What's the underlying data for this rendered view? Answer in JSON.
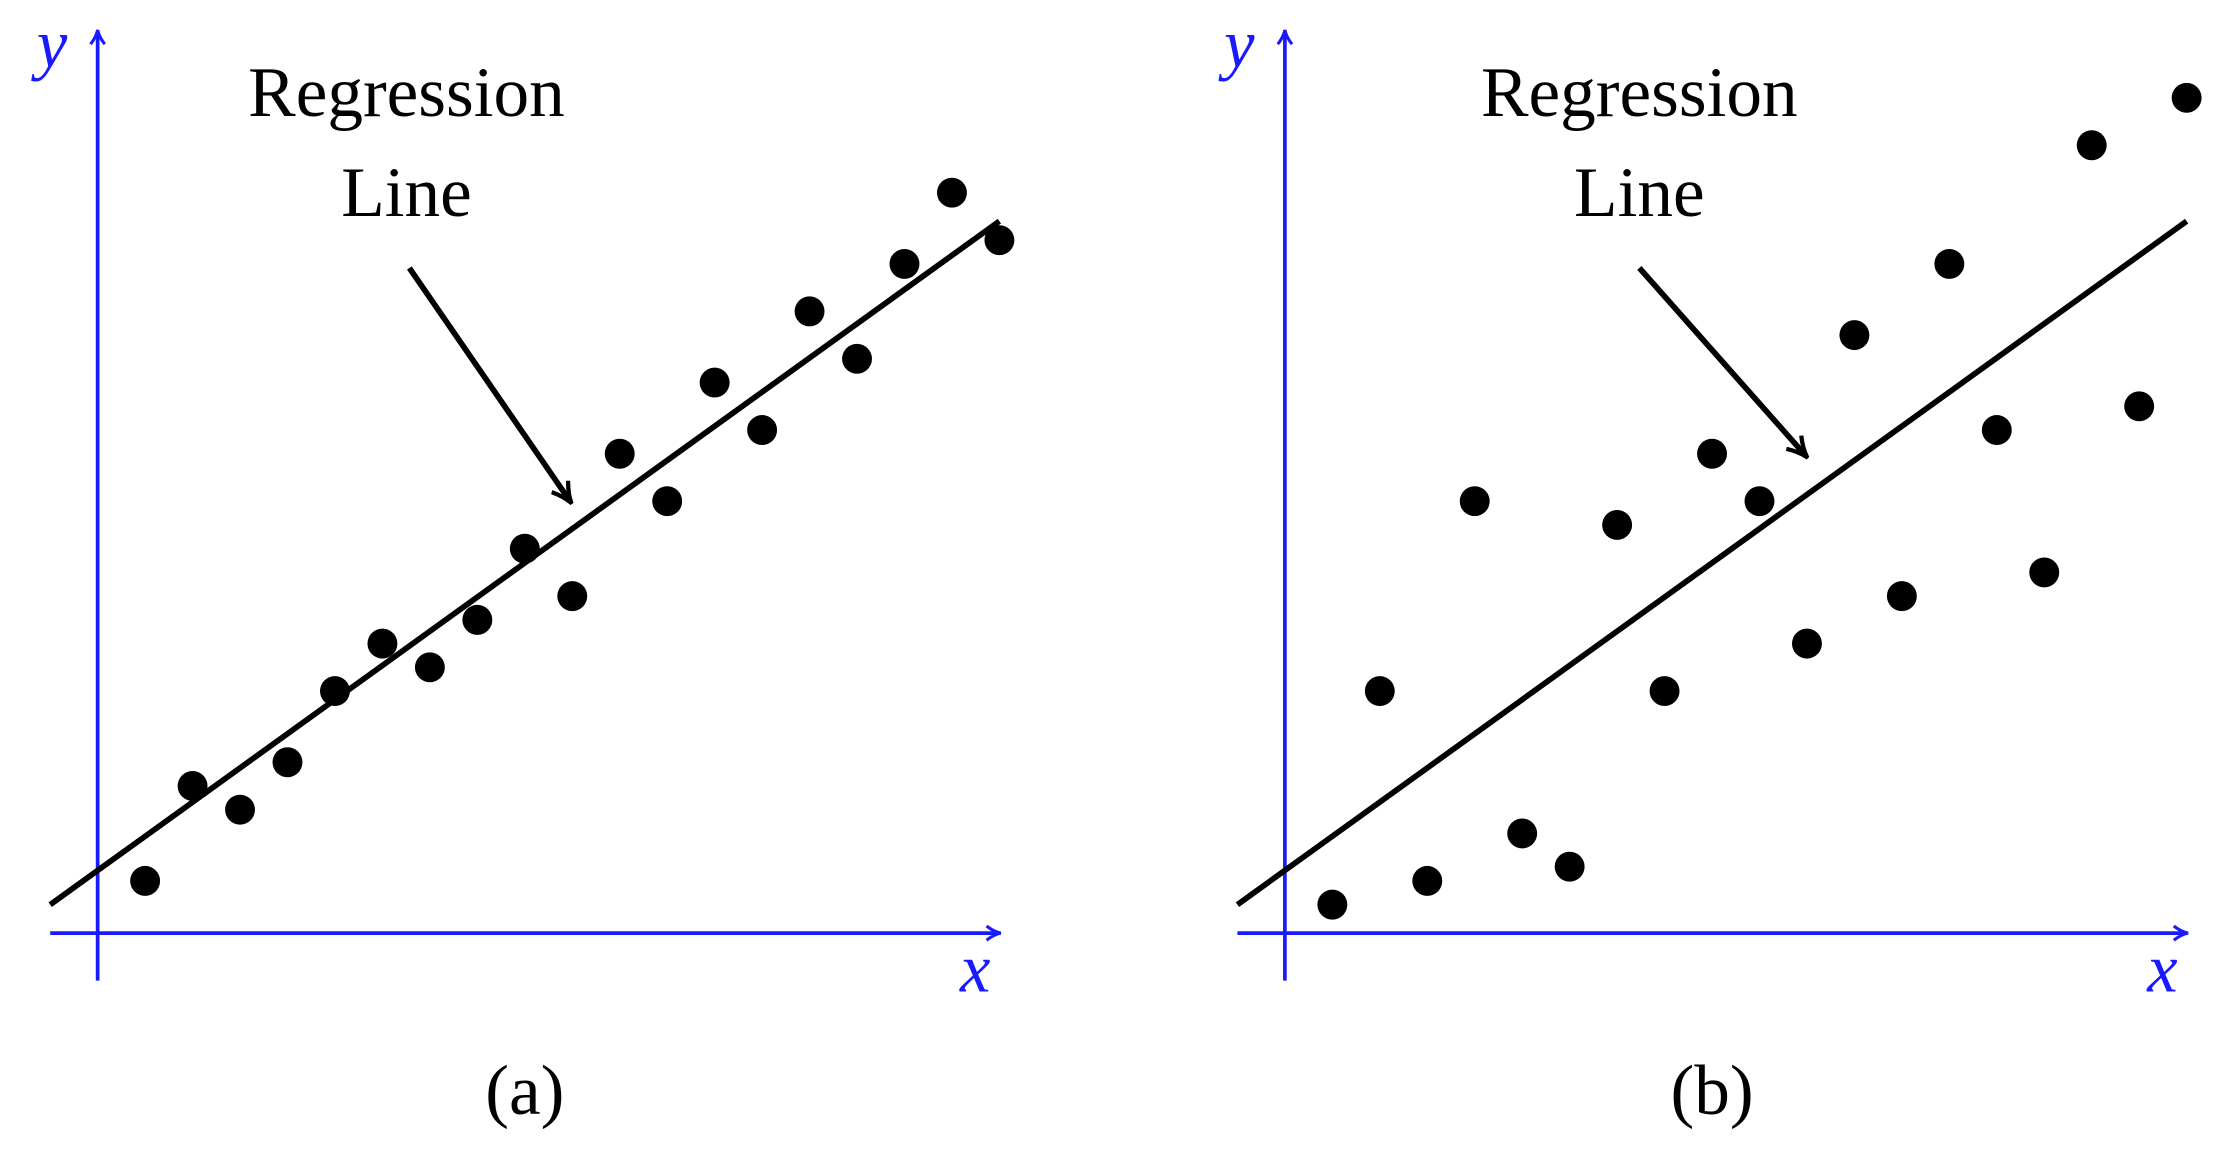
{
  "chart_data": [
    {
      "type": "scatter",
      "xlabel": "x",
      "ylabel": "y",
      "caption": "(a)",
      "annotation": [
        "Regression",
        "Line"
      ],
      "xlim": [
        -1,
        19
      ],
      "ylim": [
        -1,
        19
      ],
      "color": "#000000",
      "axis_color": "#1a1aff",
      "x": [
        1,
        2,
        3,
        4,
        5,
        6,
        7,
        8,
        9,
        10,
        11,
        12,
        13,
        14,
        15,
        16,
        17,
        18,
        19
      ],
      "values": [
        1.1,
        3.1,
        2.6,
        3.6,
        5.1,
        6.1,
        5.6,
        6.6,
        8.1,
        7.1,
        10.1,
        9.1,
        11.6,
        10.6,
        13.1,
        12.1,
        14.1,
        15.6,
        14.6
      ],
      "regression_line": {
        "x": [
          -1,
          19
        ],
        "values": [
          0.6,
          15
        ]
      }
    },
    {
      "type": "scatter",
      "xlabel": "x",
      "ylabel": "y",
      "caption": "(b)",
      "annotation": [
        "Regression",
        "Line"
      ],
      "xlim": [
        -1,
        19
      ],
      "ylim": [
        -1,
        19
      ],
      "color": "#000000",
      "axis_color": "#1a1aff",
      "x": [
        1,
        2,
        3,
        4,
        5,
        6,
        7,
        8,
        9,
        10,
        11,
        12,
        13,
        14,
        15,
        16,
        17,
        18,
        19
      ],
      "values": [
        0.6,
        5.1,
        1.1,
        9.1,
        2.1,
        1.4,
        8.6,
        5.1,
        10.1,
        9.1,
        6.1,
        12.6,
        7.1,
        14.1,
        10.6,
        7.6,
        16.6,
        11.1,
        17.6
      ],
      "regression_line": {
        "x": [
          -1,
          19
        ],
        "values": [
          0.6,
          15
        ]
      }
    }
  ]
}
